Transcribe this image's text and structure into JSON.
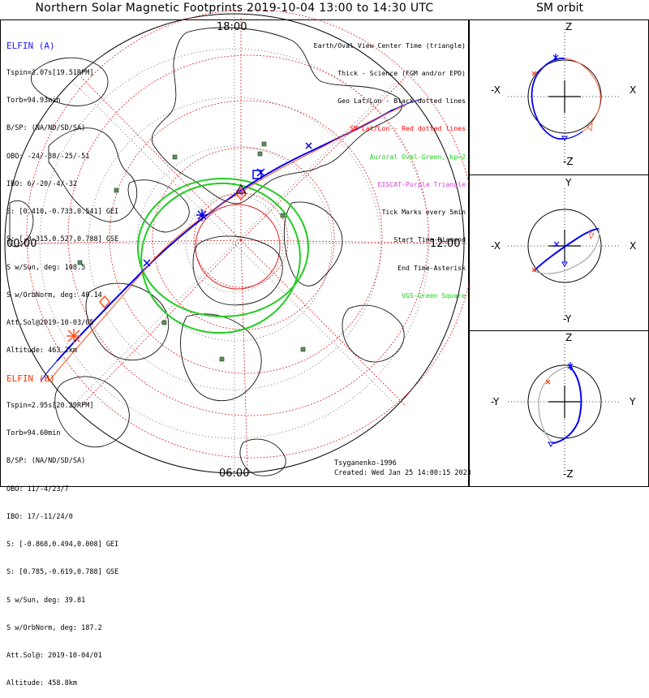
{
  "title": "Northern Solar Magnetic Footprints 2019-10-04 13:00 to 14:30 UTC",
  "orbit_title": "SM orbit",
  "clock": {
    "top": "18:00",
    "left": "00:00",
    "right": "12:00",
    "bottom": "06:00"
  },
  "elfin_a": {
    "header": "ELFIN (A)",
    "lines": [
      "Tspin=3.07s[19.51RPM]",
      "Torb=94.93min",
      "B/SP: (NA/ND/SD/SA)",
      "OBO: -24/-38/-25/-51",
      "IBO: 6/-20/-4/-32",
      "S: [0.410,-0.733,0.541] GEI",
      "S: [-0.315,0.527,0.788] GSE",
      "S w/Sun, deg: 108.5",
      "S w/OrbNorm, deg: 40.14",
      "Att.Sol@2019-10-03/05",
      "Altitude: 463.2km"
    ],
    "color": "#1a1aff"
  },
  "elfin_b": {
    "header": "ELFIN (B)",
    "lines": [
      "Tspin=2.95s[20.29RPM]",
      "Torb=94.60min",
      "B/SP: (NA/ND/SD/SA)",
      "OBO: 11/-4/23/7",
      "IBO: 17/-11/24/0",
      "S: [-0.868,0.494,0.008] GEI",
      "S: [0.785,-0.619,0.788] GSE",
      "S w/Sun, deg: 39.81",
      "S w/OrbNorm, deg: 187.2",
      "Att.Sol@: 2019-10-04/01",
      "Altitude: 458.8km"
    ],
    "color": "#ff3300"
  },
  "legend": [
    {
      "text": "Earth/Oval View Center Time (triangle)",
      "color": "#000000"
    },
    {
      "text": "Thick - Science (FGM and/or EPD)",
      "color": "#000000"
    },
    {
      "text": "Geo Lat/Lon - Black dotted lines",
      "color": "#000000"
    },
    {
      "text": "SM Lat/Lon - Red dotted lines",
      "color": "#ff0000"
    },
    {
      "text": "Auroral Oval-Green, kp=2",
      "color": "#22cc22"
    },
    {
      "text": "EISCAT-Purple Triangle",
      "color": "#cc44cc"
    },
    {
      "text": "Tick Marks every 5min",
      "color": "#000000"
    },
    {
      "text": "Start Time-Diamond",
      "color": "#000000"
    },
    {
      "text": "End Time-Asterisk",
      "color": "#000000"
    },
    {
      "text": "VGS-Green Square",
      "color": "#22cc22"
    }
  ],
  "credit": "Tsyganenko-1996",
  "created": "Created: Wed Jan 25 14:00:15 2023",
  "orbit_panels": [
    {
      "top_label": "Z",
      "bottom_label": "-Z",
      "left_label": "-X",
      "right_label": "X"
    },
    {
      "top_label": "Y",
      "bottom_label": "-Y",
      "left_label": "-X",
      "right_label": "X"
    },
    {
      "top_label": "Z",
      "bottom_label": "-Z",
      "left_label": "-Y",
      "right_label": "Y"
    }
  ],
  "colors": {
    "trackA": "#0000ee",
    "trackB": "#ff2200",
    "oval": "#22cc22",
    "smgrid": "#dd2222",
    "vgs": "#448844"
  }
}
